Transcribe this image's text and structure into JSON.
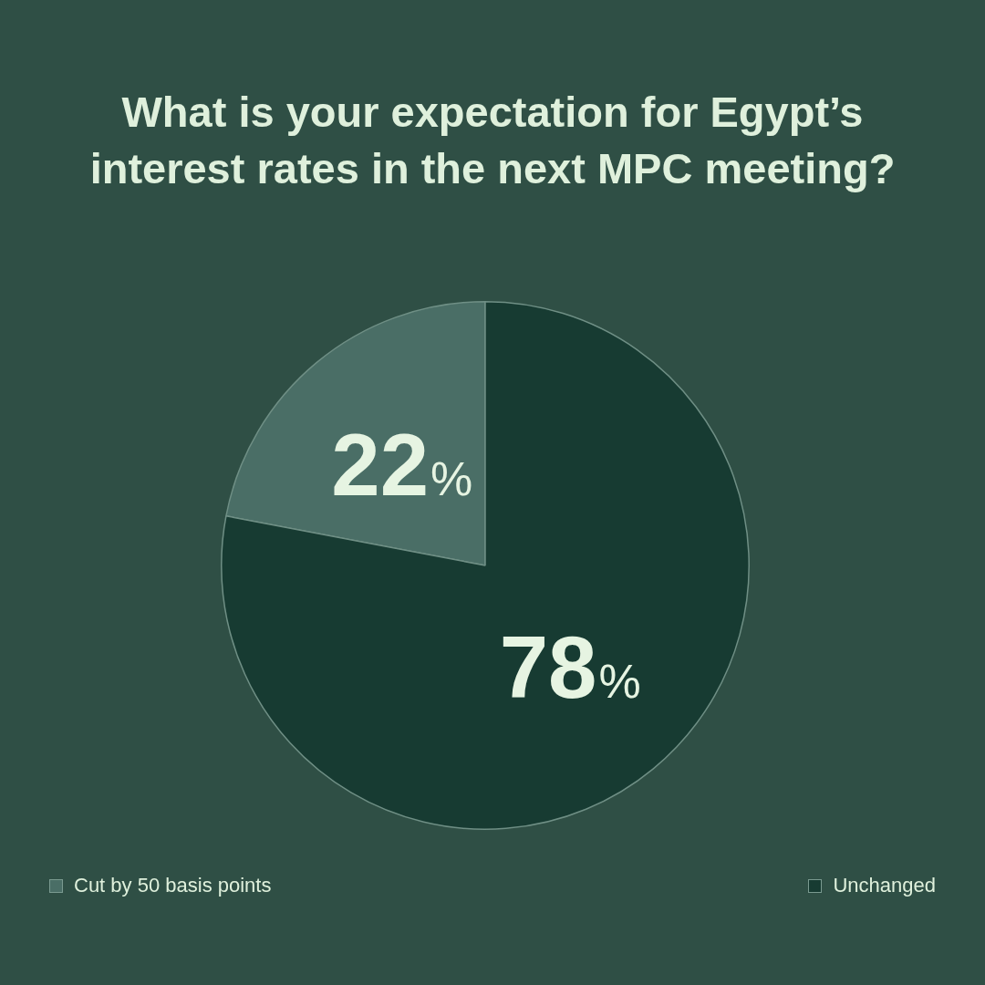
{
  "chart_data": {
    "type": "pie",
    "title": "What is your expectation for Egypt’s interest rates in the next MPC meeting?",
    "categories": [
      "Cut by 50 basis points",
      "Unchanged"
    ],
    "values": [
      22,
      78
    ],
    "value_labels": [
      "22%",
      "78%"
    ],
    "colors": [
      "#4a6e66",
      "#173b32"
    ],
    "legend": "bottom"
  }
}
